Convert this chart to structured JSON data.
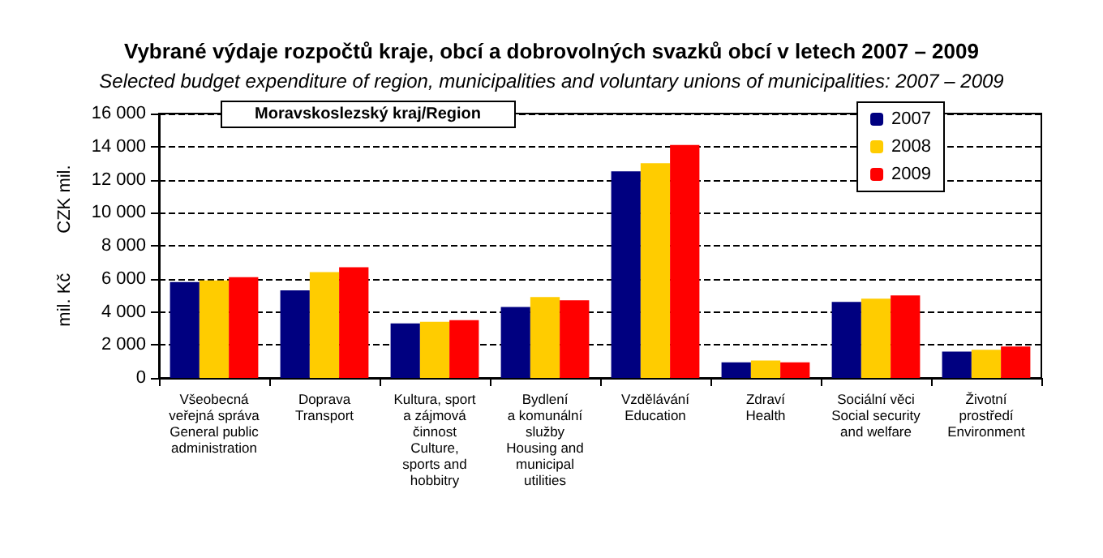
{
  "chart_data": {
    "type": "bar",
    "title": "Vybrané výdaje rozpočtů kraje, obcí a dobrovolných svazků obcí v letech 2007 – 2009",
    "subtitle": "Selected budget expenditure of region, municipalities and voluntary unions of municipalities: 2007 – 2009",
    "ylabel": "mil. Kč        CZK mil.",
    "annotations": [
      "Moravskoslezský kraj/Region"
    ],
    "categories": [
      "Všeobecná\nveřejná správa\nGeneral public\nadministration",
      "Doprava\nTransport",
      "Kultura, sport\na zájmová\nčinnost\nCulture,\nsports and\nhobbitry",
      "Bydlení\na komunální\nslužby\nHousing and\nmunicipal\nutilities",
      "Vzdělávání\nEducation",
      "Zdraví\nHealth",
      "Sociální věci\nSocial security\nand welfare",
      "Životní\nprostředí\nEnvironment"
    ],
    "series": [
      {
        "name": "2007",
        "color": "#000080",
        "values": [
          5800,
          5300,
          3300,
          4300,
          12500,
          950,
          4600,
          1600
        ]
      },
      {
        "name": "2008",
        "color": "#ffcc00",
        "values": [
          5900,
          6400,
          3400,
          4900,
          13000,
          1050,
          4800,
          1700
        ]
      },
      {
        "name": "2009",
        "color": "#ff0000",
        "values": [
          6100,
          6700,
          3500,
          4700,
          14100,
          950,
          5000,
          1900
        ]
      }
    ],
    "ylim": [
      0,
      16000
    ],
    "yticks": [
      {
        "value": 0,
        "label": "0"
      },
      {
        "value": 2000,
        "label": "2 000"
      },
      {
        "value": 4000,
        "label": "4 000"
      },
      {
        "value": 6000,
        "label": "6 000"
      },
      {
        "value": 8000,
        "label": "8 000"
      },
      {
        "value": 10000,
        "label": "10 000"
      },
      {
        "value": 12000,
        "label": "12 000"
      },
      {
        "value": 14000,
        "label": "14 000"
      },
      {
        "value": 16000,
        "label": "16 000"
      }
    ],
    "grid": "y",
    "legend": "top right"
  }
}
